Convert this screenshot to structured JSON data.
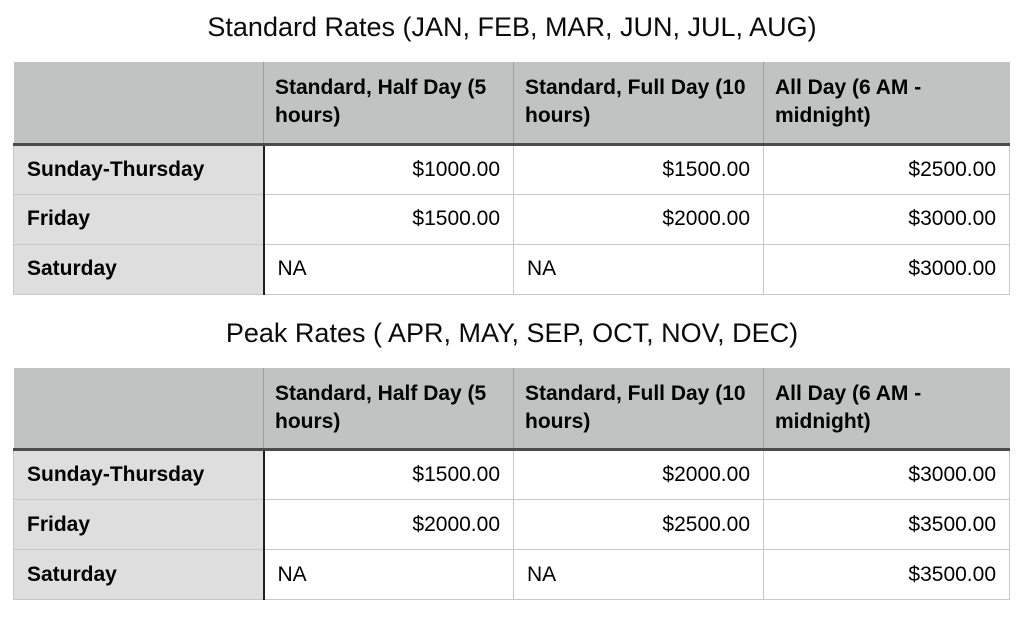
{
  "colors": {
    "header_bg": "#c1c3c2",
    "label_bg": "#dedede",
    "header_divider": "#9ea19f",
    "header_bottom": "#4c4c4c",
    "label_right": "#1f1f1f",
    "grid": "#c8c8c8",
    "text": "#000000"
  },
  "tables": [
    {
      "title": "Standard Rates (JAN, FEB, MAR, JUN, JUL, AUG)",
      "columns": [
        "",
        "Standard, Half Day (5 hours)",
        "Standard, Full Day (10 hours)",
        "All Day (6 AM - midnight)"
      ],
      "rows": [
        {
          "label": "Sunday-Thursday",
          "values": [
            "$1000.00",
            "$1500.00",
            "$2500.00"
          ]
        },
        {
          "label": "Friday",
          "values": [
            "$1500.00",
            "$2000.00",
            "$3000.00"
          ]
        },
        {
          "label": "Saturday",
          "values": [
            "NA",
            "NA",
            "$3000.00"
          ]
        }
      ]
    },
    {
      "title": "Peak Rates ( APR, MAY, SEP, OCT, NOV, DEC)",
      "columns": [
        "",
        "Standard, Half Day (5 hours)",
        "Standard, Full Day (10 hours)",
        "All Day (6 AM - midnight)"
      ],
      "rows": [
        {
          "label": "Sunday-Thursday",
          "values": [
            "$1500.00",
            "$2000.00",
            "$3000.00"
          ]
        },
        {
          "label": "Friday",
          "values": [
            "$2000.00",
            "$2500.00",
            "$3500.00"
          ]
        },
        {
          "label": "Saturday",
          "values": [
            "NA",
            "NA",
            "$3500.00"
          ]
        }
      ]
    }
  ]
}
